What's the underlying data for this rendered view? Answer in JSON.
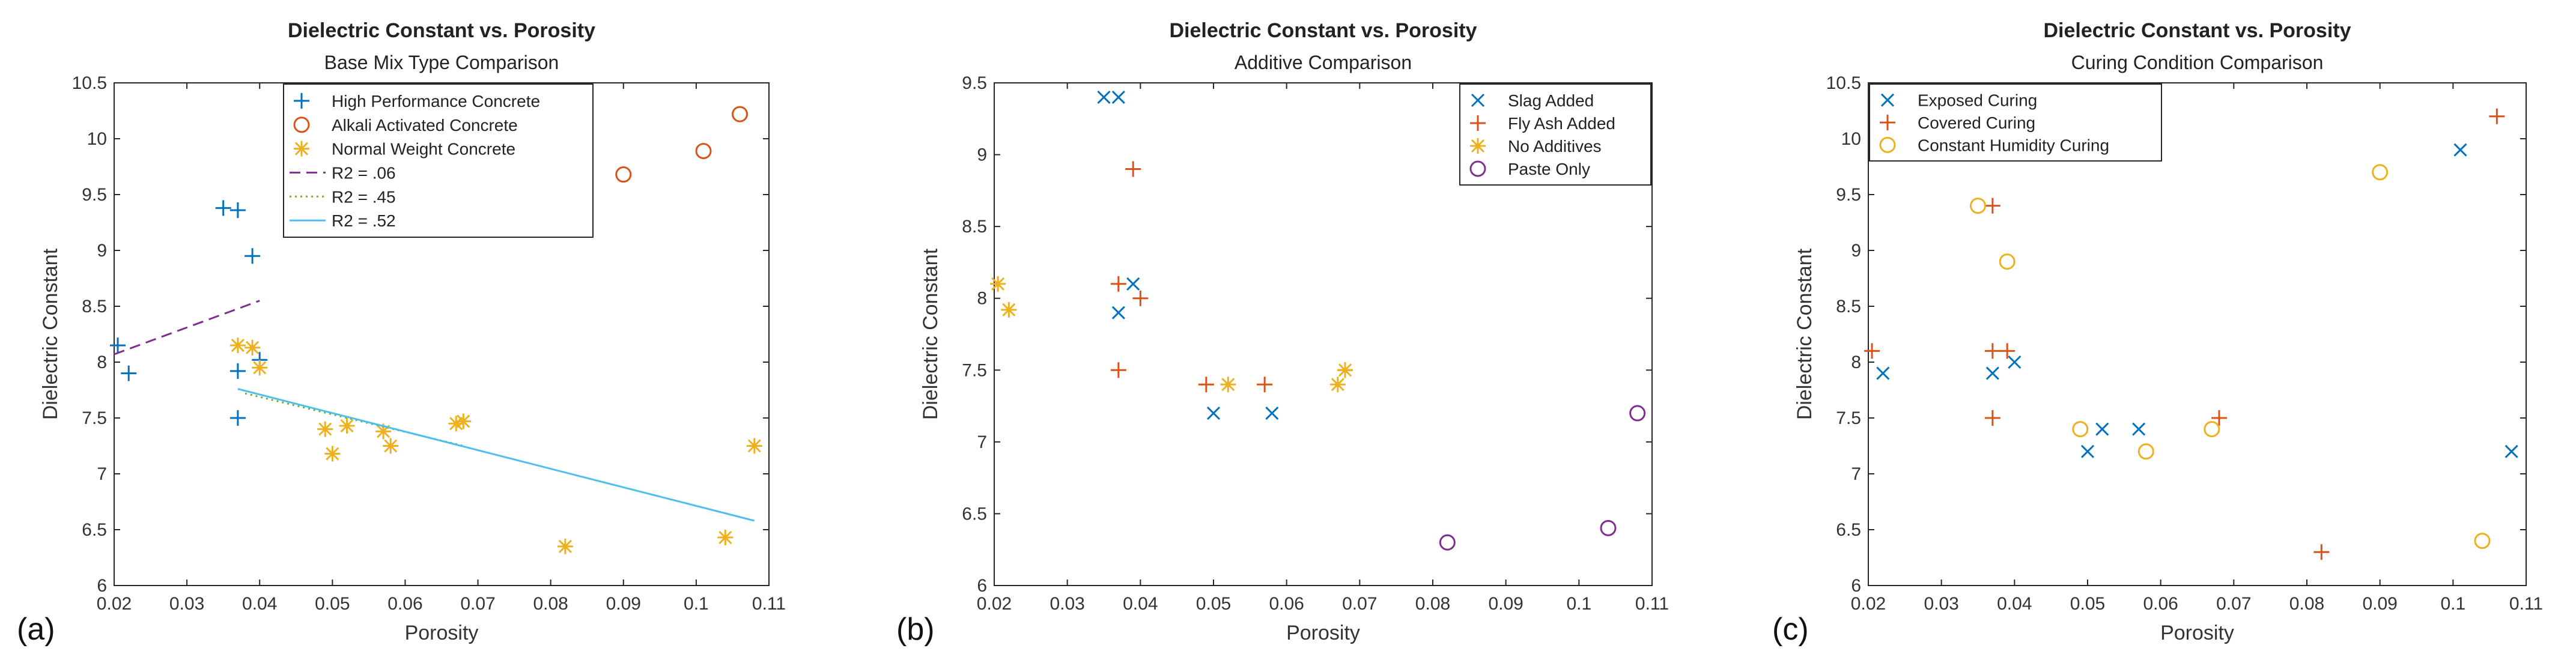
{
  "chart_data": [
    {
      "type": "scatter",
      "panel_label": "(a)",
      "title": "Dielectric Constant vs. Porosity",
      "subtitle": "Base Mix Type Comparison",
      "xlabel": "Porosity",
      "ylabel": "Dielectric Constant",
      "xlim": [
        0.02,
        0.11
      ],
      "ylim": [
        6,
        10.5
      ],
      "xticks": [
        0.02,
        0.03,
        0.04,
        0.05,
        0.06,
        0.07,
        0.08,
        0.09,
        0.1,
        0.11
      ],
      "xtick_labels": [
        "0.02",
        "0.03",
        "0.04",
        "0.05",
        "0.06",
        "0.07",
        "0.08",
        "0.09",
        "0.1",
        "0.11"
      ],
      "yticks": [
        6,
        6.5,
        7,
        7.5,
        8,
        8.5,
        9,
        9.5,
        10,
        10.5
      ],
      "ytick_labels": [
        "6",
        "6.5",
        "7",
        "7.5",
        "8",
        "8.5",
        "9",
        "9.5",
        "10",
        "10.5"
      ],
      "legend_position": "top-center",
      "series": [
        {
          "name": "High Performance Concrete",
          "marker": "plus",
          "color": "#0072BD",
          "points": [
            [
              0.0205,
              8.15
            ],
            [
              0.022,
              7.9
            ],
            [
              0.035,
              9.38
            ],
            [
              0.037,
              9.36
            ],
            [
              0.039,
              8.95
            ],
            [
              0.037,
              7.92
            ],
            [
              0.04,
              8.02
            ],
            [
              0.037,
              7.5
            ]
          ]
        },
        {
          "name": "Alkali Activated Concrete",
          "marker": "circle",
          "color": "#D95319",
          "points": [
            [
              0.09,
              9.68
            ],
            [
              0.101,
              9.89
            ],
            [
              0.106,
              10.22
            ]
          ]
        },
        {
          "name": "Normal Weight Concrete",
          "marker": "star",
          "color": "#EDB120",
          "points": [
            [
              0.037,
              8.15
            ],
            [
              0.039,
              8.13
            ],
            [
              0.04,
              7.95
            ],
            [
              0.049,
              7.4
            ],
            [
              0.05,
              7.18
            ],
            [
              0.052,
              7.43
            ],
            [
              0.057,
              7.38
            ],
            [
              0.058,
              7.25
            ],
            [
              0.067,
              7.45
            ],
            [
              0.068,
              7.47
            ],
            [
              0.082,
              6.35
            ],
            [
              0.104,
              6.43
            ],
            [
              0.108,
              7.25
            ]
          ]
        },
        {
          "name": "R2 = .06",
          "type": "line",
          "style": "dashed",
          "color": "#7E2F8E",
          "points": [
            [
              0.02,
              8.07
            ],
            [
              0.04,
              8.55
            ]
          ]
        },
        {
          "name": "R2 = .45",
          "type": "line",
          "style": "dotted",
          "color": "#77AC30",
          "points": [
            [
              0.038,
              7.72
            ],
            [
              0.068,
              7.25
            ]
          ]
        },
        {
          "name": "R2 = .52",
          "type": "line",
          "style": "solid",
          "color": "#4DBEEE",
          "points": [
            [
              0.037,
              7.76
            ],
            [
              0.108,
              6.58
            ]
          ]
        }
      ]
    },
    {
      "type": "scatter",
      "panel_label": "(b)",
      "title": "Dielectric Constant vs. Porosity",
      "subtitle": "Additive Comparison",
      "xlabel": "Porosity",
      "ylabel": "Dielectric Constant",
      "xlim": [
        0.02,
        0.11
      ],
      "ylim": [
        6,
        9.5
      ],
      "xticks": [
        0.02,
        0.03,
        0.04,
        0.05,
        0.06,
        0.07,
        0.08,
        0.09,
        0.1,
        0.11
      ],
      "xtick_labels": [
        "0.02",
        "0.03",
        "0.04",
        "0.05",
        "0.06",
        "0.07",
        "0.08",
        "0.09",
        "0.1",
        "0.11"
      ],
      "yticks": [
        6,
        6.5,
        7,
        7.5,
        8,
        8.5,
        9,
        9.5
      ],
      "ytick_labels": [
        "6",
        "6.5",
        "7",
        "7.5",
        "8",
        "8.5",
        "9",
        "9.5"
      ],
      "legend_position": "top-right",
      "series": [
        {
          "name": "Slag Added",
          "marker": "x",
          "color": "#0072BD",
          "points": [
            [
              0.035,
              9.4
            ],
            [
              0.037,
              9.4
            ],
            [
              0.039,
              8.1
            ],
            [
              0.037,
              7.9
            ],
            [
              0.05,
              7.2
            ],
            [
              0.058,
              7.2
            ]
          ]
        },
        {
          "name": "Fly Ash Added",
          "marker": "plus",
          "color": "#D95319",
          "points": [
            [
              0.039,
              8.9
            ],
            [
              0.037,
              8.1
            ],
            [
              0.04,
              8.0
            ],
            [
              0.037,
              7.5
            ],
            [
              0.049,
              7.4
            ],
            [
              0.057,
              7.4
            ],
            [
              0.068,
              7.5
            ]
          ]
        },
        {
          "name": "No Additives",
          "marker": "star",
          "color": "#EDB120",
          "points": [
            [
              0.0205,
              8.1
            ],
            [
              0.022,
              7.92
            ],
            [
              0.052,
              7.4
            ],
            [
              0.067,
              7.4
            ],
            [
              0.068,
              7.5
            ]
          ]
        },
        {
          "name": "Paste Only",
          "marker": "circle",
          "color": "#7E2F8E",
          "points": [
            [
              0.082,
              6.3
            ],
            [
              0.104,
              6.4
            ],
            [
              0.108,
              7.2
            ]
          ]
        }
      ]
    },
    {
      "type": "scatter",
      "panel_label": "(c)",
      "title": "Dielectric Constant vs. Porosity",
      "subtitle": "Curing Condition Comparison",
      "xlabel": "Porosity",
      "ylabel": "Dielectric Constant",
      "xlim": [
        0.02,
        0.11
      ],
      "ylim": [
        6,
        10.5
      ],
      "xticks": [
        0.02,
        0.03,
        0.04,
        0.05,
        0.06,
        0.07,
        0.08,
        0.09,
        0.1,
        0.11
      ],
      "xtick_labels": [
        "0.02",
        "0.03",
        "0.04",
        "0.05",
        "0.06",
        "0.07",
        "0.08",
        "0.09",
        "0.1",
        "0.11"
      ],
      "yticks": [
        6,
        6.5,
        7,
        7.5,
        8,
        8.5,
        9,
        9.5,
        10,
        10.5
      ],
      "ytick_labels": [
        "6",
        "6.5",
        "7",
        "7.5",
        "8",
        "8.5",
        "9",
        "9.5",
        "10",
        "10.5"
      ],
      "legend_position": "top-left",
      "series": [
        {
          "name": "Exposed Curing",
          "marker": "x",
          "color": "#0072BD",
          "points": [
            [
              0.022,
              7.9
            ],
            [
              0.037,
              7.9
            ],
            [
              0.04,
              8.0
            ],
            [
              0.05,
              7.2
            ],
            [
              0.052,
              7.4
            ],
            [
              0.057,
              7.4
            ],
            [
              0.101,
              9.9
            ],
            [
              0.108,
              7.2
            ]
          ]
        },
        {
          "name": "Covered Curing",
          "marker": "plus",
          "color": "#D95319",
          "points": [
            [
              0.0205,
              8.1
            ],
            [
              0.037,
              9.4
            ],
            [
              0.037,
              8.1
            ],
            [
              0.039,
              8.1
            ],
            [
              0.037,
              7.5
            ],
            [
              0.068,
              7.5
            ],
            [
              0.082,
              6.3
            ],
            [
              0.106,
              10.2
            ]
          ]
        },
        {
          "name": "Constant Humidity Curing",
          "marker": "circle",
          "color": "#EDB120",
          "points": [
            [
              0.035,
              9.4
            ],
            [
              0.039,
              8.9
            ],
            [
              0.049,
              7.4
            ],
            [
              0.058,
              7.2
            ],
            [
              0.067,
              7.4
            ],
            [
              0.09,
              9.7
            ],
            [
              0.104,
              6.4
            ]
          ]
        }
      ]
    }
  ]
}
